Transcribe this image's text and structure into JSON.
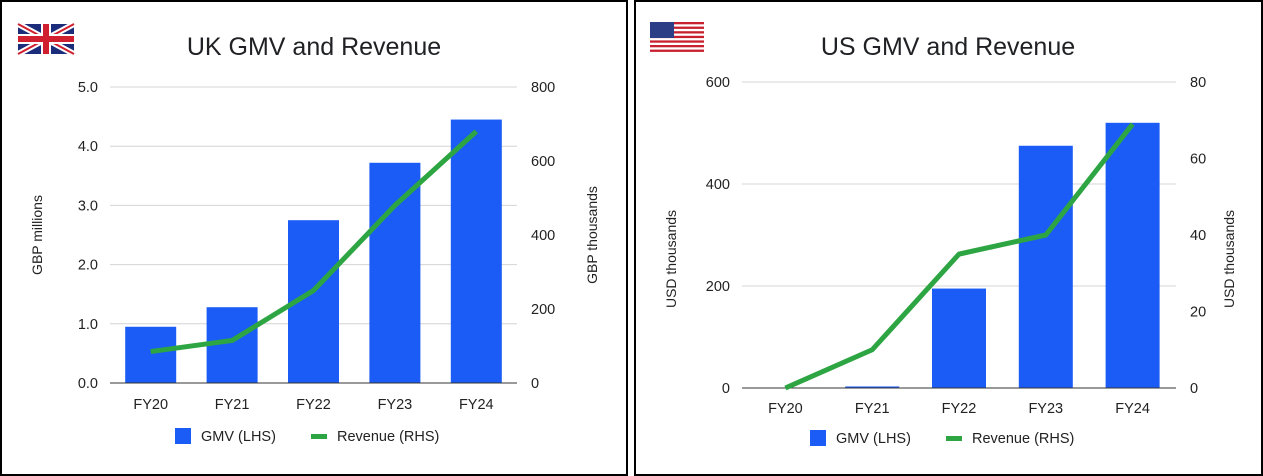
{
  "chart_data": [
    {
      "type": "bar",
      "title": "UK GMV and Revenue",
      "flag": "uk-flag",
      "categories": [
        "FY20",
        "FY21",
        "FY22",
        "FY23",
        "FY24"
      ],
      "series": [
        {
          "name": "GMV (LHS)",
          "kind": "bar",
          "axis": "left",
          "color": "#1a5cf5",
          "values": [
            0.95,
            1.28,
            2.75,
            3.72,
            4.45
          ]
        },
        {
          "name": "Revenue (RHS)",
          "kind": "line",
          "axis": "right",
          "color": "#2ea543",
          "values": [
            85,
            115,
            250,
            480,
            680
          ]
        }
      ],
      "ylabel": "GBP millions",
      "ylabel_right": "GBP thousands",
      "ylim": [
        0,
        5
      ],
      "yticks": [
        "0.0",
        "1.0",
        "2.0",
        "3.0",
        "4.0",
        "5.0"
      ],
      "ylim_right": [
        0,
        800
      ],
      "yticks_right": [
        "0",
        "200",
        "400",
        "600",
        "800"
      ],
      "grid": true,
      "legend_position": "bottom"
    },
    {
      "type": "bar",
      "title": "US GMV and Revenue",
      "flag": "us-flag",
      "categories": [
        "FY20",
        "FY21",
        "FY22",
        "FY23",
        "FY24"
      ],
      "series": [
        {
          "name": "GMV (LHS)",
          "kind": "bar",
          "axis": "left",
          "color": "#1a5cf5",
          "values": [
            0,
            3,
            195,
            475,
            520
          ]
        },
        {
          "name": "Revenue (RHS)",
          "kind": "line",
          "axis": "right",
          "color": "#2ea543",
          "values": [
            0,
            10,
            35,
            40,
            69
          ]
        }
      ],
      "ylabel": "USD thousands",
      "ylabel_right": "USD thousands",
      "ylim": [
        0,
        600
      ],
      "yticks": [
        "0",
        "200",
        "400",
        "600"
      ],
      "ylim_right": [
        0,
        80
      ],
      "yticks_right": [
        "0",
        "20",
        "40",
        "60",
        "80"
      ],
      "grid": true,
      "legend_position": "bottom"
    }
  ]
}
